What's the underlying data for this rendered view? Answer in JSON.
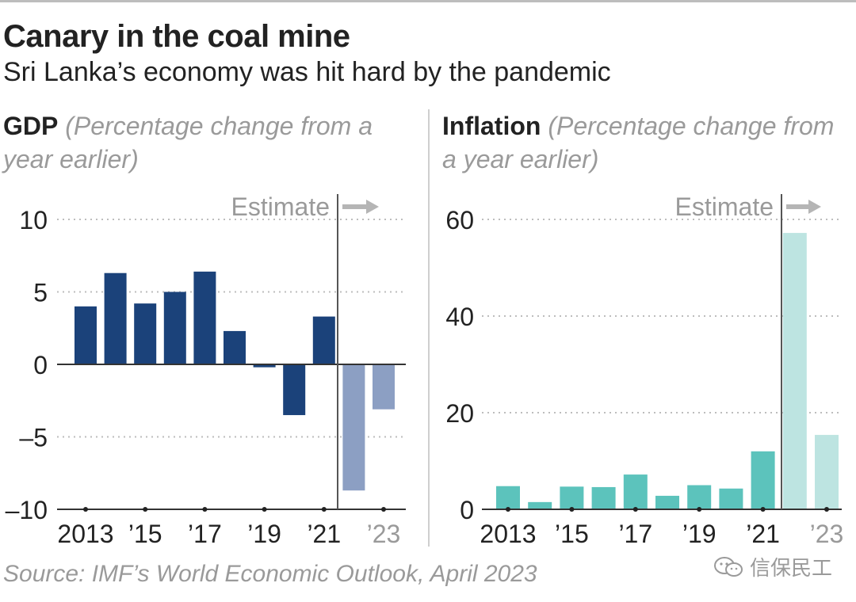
{
  "title": "Canary in the coal mine",
  "subtitle": "Sri Lanka’s economy was hit hard by the pandemic",
  "source": "Source: IMF’s World Economic Outlook, April 2023",
  "watermark": "信保民工",
  "colors": {
    "gdp_actual": "#1b427a",
    "gdp_estimate": "#8c9fc3",
    "inflation_actual": "#5cc3bc",
    "inflation_estimate": "#bde4e1",
    "gridline": "#bdbdbd",
    "estimate_line": "#555555",
    "estimate_arrow": "#b5b5b5",
    "muted_text": "#9a9a9a"
  },
  "chart_data": [
    {
      "id": "gdp",
      "type": "bar",
      "label": "GDP",
      "description": "(Percentage change from a year earlier)",
      "years": [
        2013,
        2014,
        2015,
        2016,
        2017,
        2018,
        2019,
        2020,
        2021,
        2022,
        2023
      ],
      "values": [
        4.0,
        6.3,
        4.2,
        5.0,
        6.4,
        2.3,
        -0.2,
        -3.5,
        3.3,
        -8.7,
        -3.1
      ],
      "estimate_from": 2022,
      "estimate_label": "Estimate",
      "ylim": [
        -10,
        10
      ],
      "yticks": [
        10,
        5,
        0,
        -5,
        -10
      ],
      "ytick_labels": [
        "10",
        "5",
        "0",
        "–5",
        "–10"
      ],
      "xtick_years": [
        2013,
        2015,
        2017,
        2019,
        2021,
        2023
      ],
      "xtick_labels": [
        "2013",
        "’15",
        "’17",
        "’19",
        "’21",
        "’23"
      ],
      "grid": true
    },
    {
      "id": "inflation",
      "type": "bar",
      "label": "Inflation",
      "description": "(Percentage change from a year earlier)",
      "years": [
        2013,
        2014,
        2015,
        2016,
        2017,
        2018,
        2019,
        2020,
        2021,
        2022,
        2023
      ],
      "values": [
        4.8,
        1.5,
        4.7,
        4.6,
        7.2,
        2.8,
        5.0,
        4.3,
        12.0,
        57.2,
        15.4
      ],
      "estimate_from": 2022,
      "estimate_label": "Estimate",
      "ylim": [
        0,
        60
      ],
      "yticks": [
        60,
        40,
        20,
        0
      ],
      "ytick_labels": [
        "60",
        "40",
        "20",
        "0"
      ],
      "xtick_years": [
        2013,
        2015,
        2017,
        2019,
        2021,
        2023
      ],
      "xtick_labels": [
        "2013",
        "’15",
        "’17",
        "’19",
        "’21",
        "’23"
      ],
      "grid": true
    }
  ]
}
